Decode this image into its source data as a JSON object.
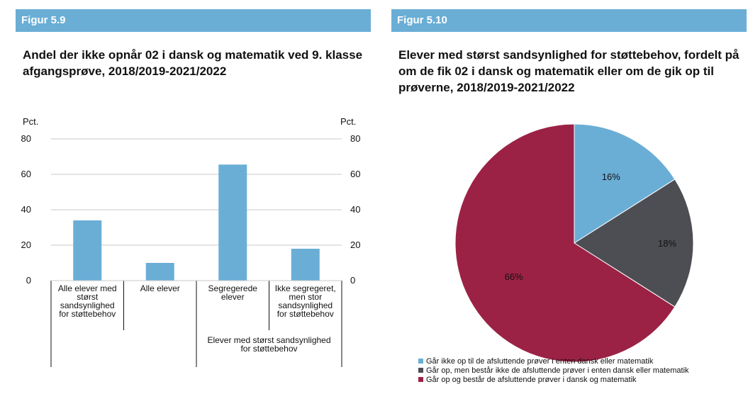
{
  "figures": [
    {
      "label": "Figur 5.9",
      "title": "Andel der ikke opnår 02 i dansk og matematik ved 9. klasse afgangsprøve, 2018/2019-2021/2022"
    },
    {
      "label": "Figur 5.10",
      "title": "Elever med størst sandsynlighed for støttebehov, fordelt på om de fik 02 i dansk og matematik eller om de gik op til prøverne, 2018/2019-2021/2022"
    }
  ],
  "chart_data": [
    {
      "type": "bar",
      "categories": [
        [
          "Alle elever med",
          "størst",
          "sandsynlighed",
          "for støttebehov"
        ],
        [
          "Alle elever"
        ],
        [
          "Segregerede",
          "elever"
        ],
        [
          "Ikke segregeret,",
          "men stor",
          "sandsynlighed",
          "for støttebehov"
        ]
      ],
      "group_label": [
        "Elever med størst sandsynlighed",
        "for støttebehov"
      ],
      "values": [
        34,
        10,
        65.5,
        18
      ],
      "ylabel_left": "Pct.",
      "ylabel_right": "Pct.",
      "ylim": [
        0,
        80
      ],
      "yticks": [
        0,
        20,
        40,
        60,
        80
      ],
      "color": "#6aaed6",
      "grid": true
    },
    {
      "type": "pie",
      "labels": [
        "Går ikke op til de afsluttende prøver i enten dansk eller matematik",
        "Går op, men består ikke de afsluttende prøver i enten dansk eller matematik",
        "Går op og består de afsluttende prøver i dansk og matematik"
      ],
      "values": [
        16,
        18,
        66
      ],
      "value_labels": [
        "16%",
        "18%",
        "66%"
      ],
      "colors": [
        "#6aaed6",
        "#4d4e53",
        "#9b2245"
      ],
      "legend_position": "bottom"
    }
  ]
}
